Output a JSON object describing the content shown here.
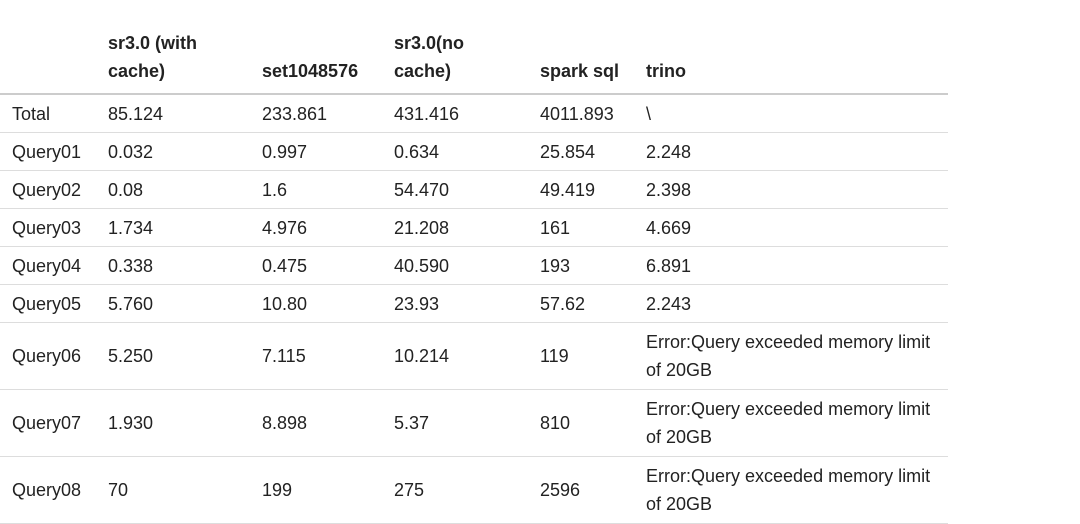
{
  "table": {
    "headers": [
      "sr3.0 (with cache)",
      "set1048576",
      "sr3.0(no cache)",
      "spark sql",
      "trino"
    ],
    "rows": [
      [
        "Total",
        "85.124",
        "233.861",
        "431.416",
        "4011.893",
        "\\"
      ],
      [
        "Query01",
        "0.032",
        "0.997",
        "0.634",
        "25.854",
        "2.248"
      ],
      [
        "Query02",
        "0.08",
        "1.6",
        "54.470",
        "49.419",
        "2.398"
      ],
      [
        "Query03",
        "1.734",
        "4.976",
        "21.208",
        "161",
        "4.669"
      ],
      [
        "Query04",
        "0.338",
        "0.475",
        "40.590",
        "193",
        "6.891"
      ],
      [
        "Query05",
        "5.760",
        "10.80",
        "23.93",
        "57.62",
        "2.243"
      ],
      [
        "Query06",
        "5.250",
        "7.115",
        "10.214",
        "119",
        "Error:Query exceeded memory limit of 20GB"
      ],
      [
        "Query07",
        "1.930",
        "8.898",
        "5.37",
        "810",
        "Error:Query exceeded memory limit of 20GB"
      ],
      [
        "Query08",
        "70",
        "199",
        "275",
        "2596",
        "Error:Query exceeded memory limit of 20GB"
      ]
    ]
  }
}
